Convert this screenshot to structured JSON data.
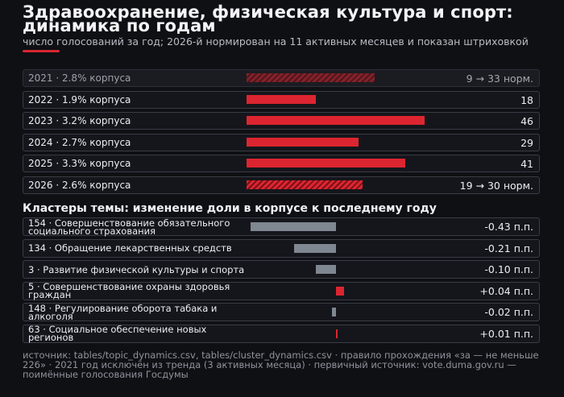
{
  "header": {
    "title": "Здравоохранение, физическая культура и спорт: динамика по годам",
    "subtitle": "число голосований за год; 2026-й нормирован на 11 активных месяцев и показан штриховкой",
    "accent_color": "#d8262f"
  },
  "chart_data": [
    {
      "type": "bar",
      "orientation": "horizontal",
      "categories": [
        "2021",
        "2022",
        "2023",
        "2024",
        "2025",
        "2026"
      ],
      "share_of_corpus": [
        "2.8%",
        "1.9%",
        "3.2%",
        "2.7%",
        "3.3%",
        "2.6%"
      ],
      "row_labels": [
        "2021 · 2.8% корпуса",
        "2022 · 1.9% корпуса",
        "2023 · 3.2% корпуса",
        "2024 · 2.7% корпуса",
        "2025 · 3.3% корпуса",
        "2026 · 2.6% корпуса"
      ],
      "values_raw": [
        9,
        18,
        46,
        29,
        41,
        19
      ],
      "values": [
        33,
        18,
        46,
        29,
        41,
        30
      ],
      "value_labels": [
        "9 → 33 норм.",
        "18",
        "46",
        "29",
        "41",
        "19 → 30 норм."
      ],
      "hatched": [
        true,
        false,
        false,
        false,
        false,
        true
      ],
      "excluded_from_trend": [
        true,
        false,
        false,
        false,
        false,
        false
      ],
      "bar_color": "#dc2530",
      "xlim": [
        0,
        46
      ]
    },
    {
      "type": "bar",
      "orientation": "horizontal",
      "title": "Кластеры темы: изменение доли в корпусе к последнему году",
      "categories": [
        "154 · Совершенствование обязательного социального страхования",
        "134 · Обращение лекарственных средств",
        "3 · Развитие физической культуры и спорта",
        "5 · Совершенствование охраны здоровья граждан",
        "148 · Регулирование оборота табака и алкоголя",
        "63 · Социальное обеспечение новых регионов"
      ],
      "values": [
        -0.43,
        -0.21,
        -0.1,
        0.04,
        -0.02,
        0.01
      ],
      "value_labels": [
        "-0.43 п.п.",
        "-0.21 п.п.",
        "-0.10 п.п.",
        "+0.04 п.п.",
        "-0.02 п.п.",
        "+0.01 п.п."
      ],
      "unit": "п.п.",
      "colors": {
        "negative": "#7f8791",
        "positive": "#dc2530"
      }
    }
  ],
  "footer": {
    "text": "источник: tables/topic_dynamics.csv, tables/cluster_dynamics.csv · правило прохождения «за — не меньше 226» · 2021 год исключён из тренда (3 активных месяца) · первичный источник: vote.duma.gov.ru — поимённые голосования Госдумы"
  }
}
